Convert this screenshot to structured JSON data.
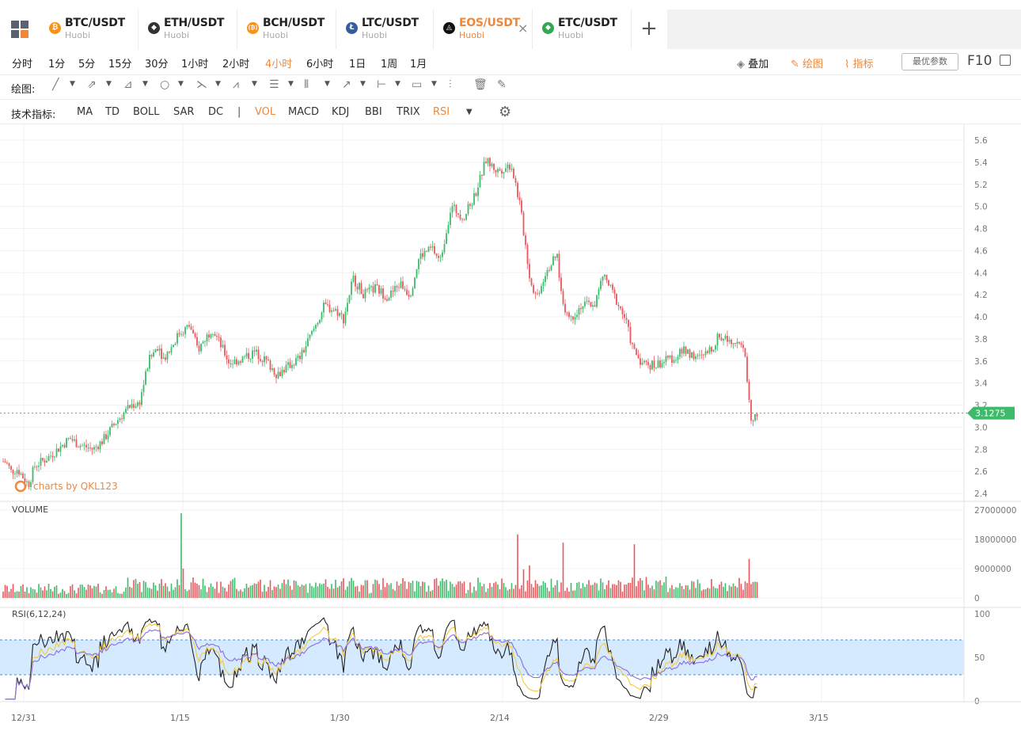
{
  "tabs": [
    {
      "pair": "BTC/USDT",
      "exchange": "Huobi",
      "icon": "bitcoin-icon",
      "icon_color": "#f7931a",
      "glyph": "₿",
      "active": false
    },
    {
      "pair": "ETH/USDT",
      "exchange": "Huobi",
      "icon": "ethereum-icon",
      "icon_color": "#333333",
      "glyph": "◆",
      "active": false
    },
    {
      "pair": "BCH/USDT",
      "exchange": "Huobi",
      "icon": "bitcoin-cash-icon",
      "icon_color": "#f7931a",
      "glyph": "(₿)",
      "active": false
    },
    {
      "pair": "LTC/USDT",
      "exchange": "Huobi",
      "icon": "litecoin-icon",
      "icon_color": "#345d9d",
      "glyph": "Ł",
      "active": false
    },
    {
      "pair": "EOS/USDT",
      "exchange": "Huobi",
      "icon": "eos-icon",
      "icon_color": "#111111",
      "glyph": "◬",
      "active": true,
      "close": "×"
    },
    {
      "pair": "ETC/USDT",
      "exchange": "Huobi",
      "icon": "ethereum-classic-icon",
      "icon_color": "#33a852",
      "glyph": "◆",
      "active": false
    }
  ],
  "add_tab": "+",
  "periods": [
    "分时",
    "1分",
    "5分",
    "15分",
    "30分",
    "1小时",
    "2小时",
    "4小时",
    "6小时",
    "1日",
    "1周",
    "1月"
  ],
  "active_period": "4小时",
  "right_tools": {
    "overlay": "叠加",
    "draw": "绘图",
    "indicator": "指标",
    "params": "最优参数",
    "f10": "F10"
  },
  "draw_label": "绘图:",
  "indicator_label": "技术指标:",
  "indicators": [
    "MA",
    "TD",
    "BOLL",
    "SAR",
    "DC",
    "VOL",
    "MACD",
    "KDJ",
    "BBI",
    "TRIX",
    "RSI"
  ],
  "active_indicators": [
    "VOL",
    "RSI"
  ],
  "colors": {
    "up": "#3cbc6a",
    "down": "#e8585d",
    "accent": "#f0873a",
    "rsi_band": "#d6eaff",
    "rsi_line1": "#222222",
    "rsi_line2": "#f5c842",
    "rsi_line3": "#8a6de0",
    "price_tag": "#3cbc6a"
  },
  "chart_data": {
    "type": "candlestick",
    "symbol": "EOS/USDT",
    "interval": "4小时",
    "watermark": "charts by QKL123",
    "last_price": "3.1275",
    "price_axis": {
      "ticks": [
        "5.6",
        "5.4",
        "5.2",
        "5.0",
        "4.8",
        "4.6",
        "4.4",
        "4.2",
        "4.0",
        "3.8",
        "3.6",
        "3.4",
        "3.2",
        "3.0",
        "2.8",
        "2.6",
        "2.4"
      ],
      "min": 2.4,
      "max": 5.6
    },
    "date_axis": [
      "12/31",
      "1/15",
      "1/30",
      "2/14",
      "2/29",
      "3/15"
    ],
    "close_keypoints": [
      [
        0,
        2.7
      ],
      [
        8,
        2.68
      ],
      [
        14,
        2.6
      ],
      [
        22,
        2.62
      ],
      [
        26,
        2.58
      ],
      [
        36,
        2.48
      ],
      [
        44,
        2.65
      ],
      [
        60,
        2.72
      ],
      [
        76,
        2.82
      ],
      [
        88,
        2.9
      ],
      [
        100,
        2.84
      ],
      [
        118,
        2.8
      ],
      [
        130,
        2.88
      ],
      [
        148,
        3.06
      ],
      [
        166,
        3.2
      ],
      [
        176,
        3.22
      ],
      [
        188,
        3.6
      ],
      [
        200,
        3.75
      ],
      [
        206,
        3.62
      ],
      [
        216,
        3.72
      ],
      [
        226,
        3.85
      ],
      [
        240,
        3.92
      ],
      [
        250,
        3.7
      ],
      [
        268,
        3.9
      ],
      [
        290,
        3.58
      ],
      [
        306,
        3.62
      ],
      [
        322,
        3.68
      ],
      [
        336,
        3.6
      ],
      [
        350,
        3.48
      ],
      [
        364,
        3.55
      ],
      [
        380,
        3.64
      ],
      [
        394,
        3.85
      ],
      [
        410,
        4.1
      ],
      [
        426,
        4.05
      ],
      [
        434,
        3.98
      ],
      [
        446,
        4.35
      ],
      [
        460,
        4.2
      ],
      [
        474,
        4.26
      ],
      [
        490,
        4.18
      ],
      [
        506,
        4.3
      ],
      [
        518,
        4.2
      ],
      [
        530,
        4.55
      ],
      [
        546,
        4.62
      ],
      [
        556,
        4.5
      ],
      [
        570,
        5.0
      ],
      [
        586,
        4.9
      ],
      [
        600,
        5.1
      ],
      [
        614,
        5.42
      ],
      [
        628,
        5.32
      ],
      [
        646,
        5.38
      ],
      [
        656,
        5.05
      ],
      [
        664,
        4.65
      ],
      [
        670,
        4.32
      ],
      [
        678,
        4.18
      ],
      [
        690,
        4.42
      ],
      [
        704,
        4.55
      ],
      [
        710,
        4.15
      ],
      [
        720,
        3.98
      ],
      [
        734,
        4.1
      ],
      [
        752,
        4.12
      ],
      [
        762,
        4.38
      ],
      [
        774,
        4.22
      ],
      [
        790,
        3.98
      ],
      [
        800,
        3.7
      ],
      [
        812,
        3.58
      ],
      [
        826,
        3.56
      ],
      [
        840,
        3.6
      ],
      [
        856,
        3.65
      ],
      [
        866,
        3.7
      ],
      [
        882,
        3.62
      ],
      [
        896,
        3.68
      ],
      [
        908,
        3.82
      ],
      [
        922,
        3.8
      ],
      [
        934,
        3.78
      ],
      [
        942,
        3.62
      ],
      [
        948,
        3.1
      ],
      [
        952,
        3.05
      ],
      [
        956,
        3.13
      ]
    ],
    "volume_axis": {
      "ticks": [
        "27000000",
        "18000000",
        "9000000",
        "0"
      ],
      "max": 27000000
    },
    "volume_spikes": [
      [
        230,
        26000000
      ],
      [
        655,
        19500000
      ],
      [
        711,
        17000000
      ],
      [
        802,
        16500000
      ],
      [
        946,
        12000000
      ],
      [
        668,
        10000000
      ],
      [
        232,
        9000000
      ],
      [
        662,
        8800000
      ]
    ],
    "rsi": {
      "label": "RSI(6,12,24)",
      "ticks": [
        "100",
        "50",
        "0"
      ],
      "upper": 70,
      "lower": 30
    }
  }
}
